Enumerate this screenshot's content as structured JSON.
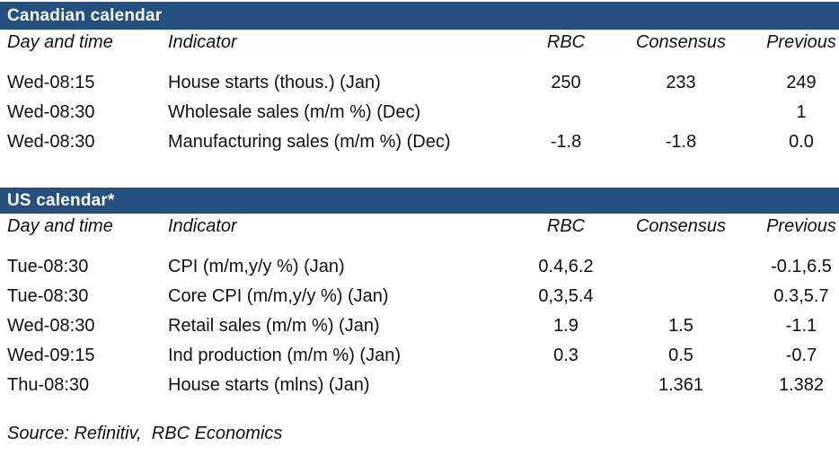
{
  "page": {
    "background": "#ffffff",
    "accent_navy": "#254F7E",
    "text_color": "#111111",
    "bar_text_color": "#ffffff"
  },
  "columns": [
    "Day and time",
    "Indicator",
    "RBC",
    "Consensus",
    "Previous"
  ],
  "sections": [
    {
      "title": "Canadian calendar",
      "rows": [
        {
          "day": "Wed-08:15",
          "indicator": "House starts (thous.) (Jan)",
          "rbc": "250",
          "consensus": "233",
          "previous": "249"
        },
        {
          "day": "Wed-08:30",
          "indicator": "Wholesale sales (m/m %) (Dec)",
          "rbc": "",
          "consensus": "",
          "previous": "1"
        },
        {
          "day": "Wed-08:30",
          "indicator": "Manufacturing sales (m/m %) (Dec)",
          "rbc": "-1.8",
          "consensus": "-1.8",
          "previous": "0.0"
        }
      ]
    },
    {
      "title": "US calendar*",
      "rows": [
        {
          "day": "Tue-08:30",
          "indicator": "CPI (m/m,y/y %) (Jan)",
          "rbc": "0.4,6.2",
          "consensus": "",
          "previous": "-0.1,6.5"
        },
        {
          "day": "Tue-08:30",
          "indicator": "Core CPI (m/m,y/y %) (Jan)",
          "rbc": "0,3,5.4",
          "consensus": "",
          "previous": "0.3,5.7"
        },
        {
          "day": "Wed-08:30",
          "indicator": "Retail sales (m/m %) (Jan)",
          "rbc": "1.9",
          "consensus": "1.5",
          "previous": "-1.1"
        },
        {
          "day": "Wed-09:15",
          "indicator": "Ind production (m/m %) (Jan)",
          "rbc": "0.3",
          "consensus": "0.5",
          "previous": "-0.7"
        },
        {
          "day": "Thu-08:30",
          "indicator": "House starts (mlns) (Jan)",
          "rbc": "",
          "consensus": "1.361",
          "previous": "1.382"
        }
      ]
    }
  ],
  "footer": {
    "source": "Source: Refinitiv,  RBC Economics"
  }
}
